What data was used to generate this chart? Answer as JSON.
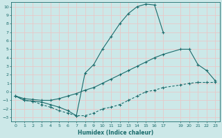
{
  "xlabel": "Humidex (Indice chaleur)",
  "bg_color": "#cce8e8",
  "grid_color": "#e8c8c8",
  "line_color": "#1a6b6b",
  "xlim": [
    -0.5,
    23.5
  ],
  "ylim": [
    -3.5,
    10.5
  ],
  "xticks": [
    0,
    1,
    2,
    3,
    4,
    5,
    6,
    7,
    8,
    9,
    10,
    11,
    12,
    13,
    14,
    15,
    16,
    17,
    19,
    20,
    21,
    22,
    23
  ],
  "yticks": [
    -3,
    -2,
    -1,
    0,
    1,
    2,
    3,
    4,
    5,
    6,
    7,
    8,
    9,
    10
  ],
  "line1_x": [
    0,
    1,
    2,
    3,
    4,
    5,
    6,
    7,
    8,
    9,
    10,
    11,
    12,
    13,
    14,
    15,
    16,
    17
  ],
  "line1_y": [
    -0.5,
    -1.0,
    -1.1,
    -1.2,
    -1.5,
    -1.8,
    -2.2,
    -2.8,
    2.2,
    3.2,
    5.0,
    6.5,
    8.0,
    9.2,
    10.0,
    10.3,
    10.2,
    7.0
  ],
  "line2_x": [
    0,
    1,
    2,
    3,
    4,
    5,
    6,
    7,
    8,
    9,
    10,
    11,
    12,
    13,
    14,
    15,
    16,
    17,
    19,
    20,
    21,
    22,
    23
  ],
  "line2_y": [
    -0.5,
    -0.8,
    -0.9,
    -1.0,
    -1.0,
    -0.8,
    -0.5,
    -0.2,
    0.2,
    0.5,
    1.0,
    1.5,
    2.0,
    2.5,
    3.0,
    3.5,
    4.0,
    4.4,
    5.0,
    5.0,
    3.2,
    2.5,
    1.3
  ],
  "line3_x": [
    0,
    1,
    2,
    3,
    4,
    5,
    6,
    7,
    8,
    9,
    10,
    11,
    12,
    13,
    14,
    15,
    16,
    17,
    19,
    20,
    21,
    22,
    23
  ],
  "line3_y": [
    -0.5,
    -1.0,
    -1.1,
    -1.5,
    -1.8,
    -2.2,
    -2.5,
    -2.8,
    -2.8,
    -2.5,
    -2.0,
    -1.8,
    -1.5,
    -1.0,
    -0.5,
    0.0,
    0.2,
    0.5,
    0.8,
    1.0,
    1.1,
    1.1,
    1.1
  ],
  "line1_style": "-",
  "line2_style": "-",
  "line3_style": "--"
}
